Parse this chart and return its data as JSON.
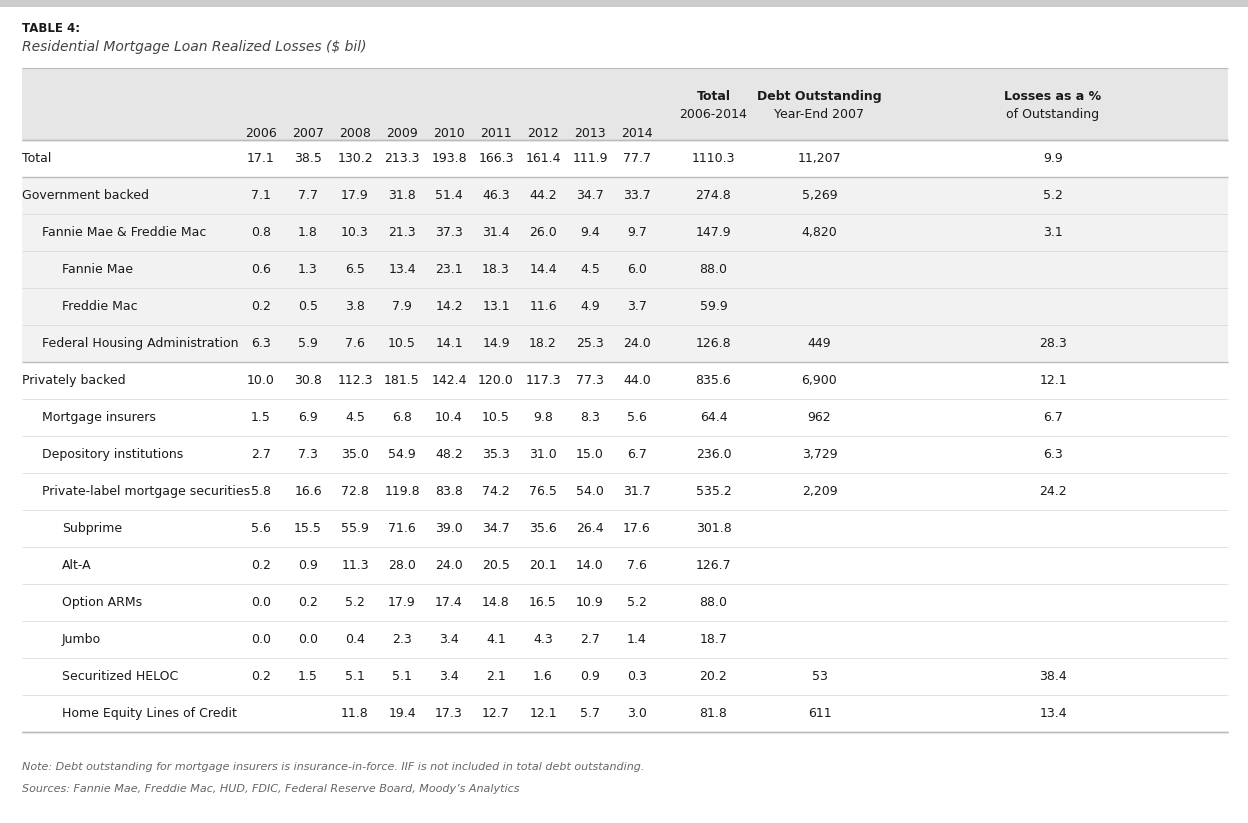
{
  "table_label": "TABLE 4:",
  "title": "Residential Mortgage Loan Realized Losses ($ bil)",
  "col_headers_years": [
    "2006",
    "2007",
    "2008",
    "2009",
    "2010",
    "2011",
    "2012",
    "2013",
    "2014"
  ],
  "rows": [
    {
      "label": "Total",
      "indent": 0,
      "bold": false,
      "values": [
        "17.1",
        "38.5",
        "130.2",
        "213.3",
        "193.8",
        "166.3",
        "161.4",
        "111.9",
        "77.7",
        "1110.3",
        "11,207",
        "9.9"
      ],
      "separator_above": true,
      "separator_below": true,
      "bg": "#ffffff"
    },
    {
      "label": "Government backed",
      "indent": 0,
      "bold": false,
      "values": [
        "7.1",
        "7.7",
        "17.9",
        "31.8",
        "51.4",
        "46.3",
        "44.2",
        "34.7",
        "33.7",
        "274.8",
        "5,269",
        "5.2"
      ],
      "separator_above": false,
      "separator_below": false,
      "bg": "#f2f2f2"
    },
    {
      "label": "Fannie Mae & Freddie Mac",
      "indent": 1,
      "bold": false,
      "values": [
        "0.8",
        "1.8",
        "10.3",
        "21.3",
        "37.3",
        "31.4",
        "26.0",
        "9.4",
        "9.7",
        "147.9",
        "4,820",
        "3.1"
      ],
      "separator_above": false,
      "separator_below": false,
      "bg": "#f2f2f2"
    },
    {
      "label": "Fannie Mae",
      "indent": 2,
      "bold": false,
      "values": [
        "0.6",
        "1.3",
        "6.5",
        "13.4",
        "23.1",
        "18.3",
        "14.4",
        "4.5",
        "6.0",
        "88.0",
        "",
        ""
      ],
      "separator_above": false,
      "separator_below": false,
      "bg": "#f2f2f2"
    },
    {
      "label": "Freddie Mac",
      "indent": 2,
      "bold": false,
      "values": [
        "0.2",
        "0.5",
        "3.8",
        "7.9",
        "14.2",
        "13.1",
        "11.6",
        "4.9",
        "3.7",
        "59.9",
        "",
        ""
      ],
      "separator_above": false,
      "separator_below": false,
      "bg": "#f2f2f2"
    },
    {
      "label": "Federal Housing Administration",
      "indent": 1,
      "bold": false,
      "values": [
        "6.3",
        "5.9",
        "7.6",
        "10.5",
        "14.1",
        "14.9",
        "18.2",
        "25.3",
        "24.0",
        "126.8",
        "449",
        "28.3"
      ],
      "separator_above": false,
      "separator_below": false,
      "bg": "#f2f2f2"
    },
    {
      "label": "Privately backed",
      "indent": 0,
      "bold": false,
      "values": [
        "10.0",
        "30.8",
        "112.3",
        "181.5",
        "142.4",
        "120.0",
        "117.3",
        "77.3",
        "44.0",
        "835.6",
        "6,900",
        "12.1"
      ],
      "separator_above": true,
      "separator_below": false,
      "bg": "#ffffff"
    },
    {
      "label": "Mortgage insurers",
      "indent": 1,
      "bold": false,
      "values": [
        "1.5",
        "6.9",
        "4.5",
        "6.8",
        "10.4",
        "10.5",
        "9.8",
        "8.3",
        "5.6",
        "64.4",
        "962",
        "6.7"
      ],
      "separator_above": false,
      "separator_below": false,
      "bg": "#ffffff"
    },
    {
      "label": "Depository institutions",
      "indent": 1,
      "bold": false,
      "values": [
        "2.7",
        "7.3",
        "35.0",
        "54.9",
        "48.2",
        "35.3",
        "31.0",
        "15.0",
        "6.7",
        "236.0",
        "3,729",
        "6.3"
      ],
      "separator_above": false,
      "separator_below": false,
      "bg": "#ffffff"
    },
    {
      "label": "Private-label mortgage securities",
      "indent": 1,
      "bold": false,
      "values": [
        "5.8",
        "16.6",
        "72.8",
        "119.8",
        "83.8",
        "74.2",
        "76.5",
        "54.0",
        "31.7",
        "535.2",
        "2,209",
        "24.2"
      ],
      "separator_above": false,
      "separator_below": false,
      "bg": "#ffffff"
    },
    {
      "label": "Subprime",
      "indent": 2,
      "bold": false,
      "values": [
        "5.6",
        "15.5",
        "55.9",
        "71.6",
        "39.0",
        "34.7",
        "35.6",
        "26.4",
        "17.6",
        "301.8",
        "",
        ""
      ],
      "separator_above": false,
      "separator_below": false,
      "bg": "#ffffff"
    },
    {
      "label": "Alt-A",
      "indent": 2,
      "bold": false,
      "values": [
        "0.2",
        "0.9",
        "11.3",
        "28.0",
        "24.0",
        "20.5",
        "20.1",
        "14.0",
        "7.6",
        "126.7",
        "",
        ""
      ],
      "separator_above": false,
      "separator_below": false,
      "bg": "#ffffff"
    },
    {
      "label": "Option ARMs",
      "indent": 2,
      "bold": false,
      "values": [
        "0.0",
        "0.2",
        "5.2",
        "17.9",
        "17.4",
        "14.8",
        "16.5",
        "10.9",
        "5.2",
        "88.0",
        "",
        ""
      ],
      "separator_above": false,
      "separator_below": false,
      "bg": "#ffffff"
    },
    {
      "label": "Jumbo",
      "indent": 2,
      "bold": false,
      "values": [
        "0.0",
        "0.0",
        "0.4",
        "2.3",
        "3.4",
        "4.1",
        "4.3",
        "2.7",
        "1.4",
        "18.7",
        "",
        ""
      ],
      "separator_above": false,
      "separator_below": false,
      "bg": "#ffffff"
    },
    {
      "label": "Securitized HELOC",
      "indent": 2,
      "bold": false,
      "values": [
        "0.2",
        "1.5",
        "5.1",
        "5.1",
        "3.4",
        "2.1",
        "1.6",
        "0.9",
        "0.3",
        "20.2",
        "53",
        "38.4"
      ],
      "separator_above": false,
      "separator_below": false,
      "bg": "#ffffff"
    },
    {
      "label": "Home Equity Lines of Credit",
      "indent": 2,
      "bold": false,
      "values": [
        "",
        "",
        "11.8",
        "19.4",
        "17.3",
        "12.7",
        "12.1",
        "5.7",
        "3.0",
        "81.8",
        "611",
        "13.4"
      ],
      "separator_above": false,
      "separator_below": true,
      "bg": "#ffffff"
    }
  ],
  "note": "Note: Debt outstanding for mortgage insurers is insurance-in-force. IIF is not included in total debt outstanding.",
  "sources": "Sources: Fannie Mae, Freddie Mac, HUD, FDIC, Federal Reserve Board, Moody’s Analytics",
  "bg_color": "#ffffff",
  "header_bg": "#e6e6e6",
  "alt_bg": "#f2f2f2",
  "sep_color": "#bbbbbb",
  "light_sep_color": "#d8d8d8",
  "text_color": "#1a1a1a",
  "note_color": "#666666",
  "top_bar_color": "#cccccc"
}
